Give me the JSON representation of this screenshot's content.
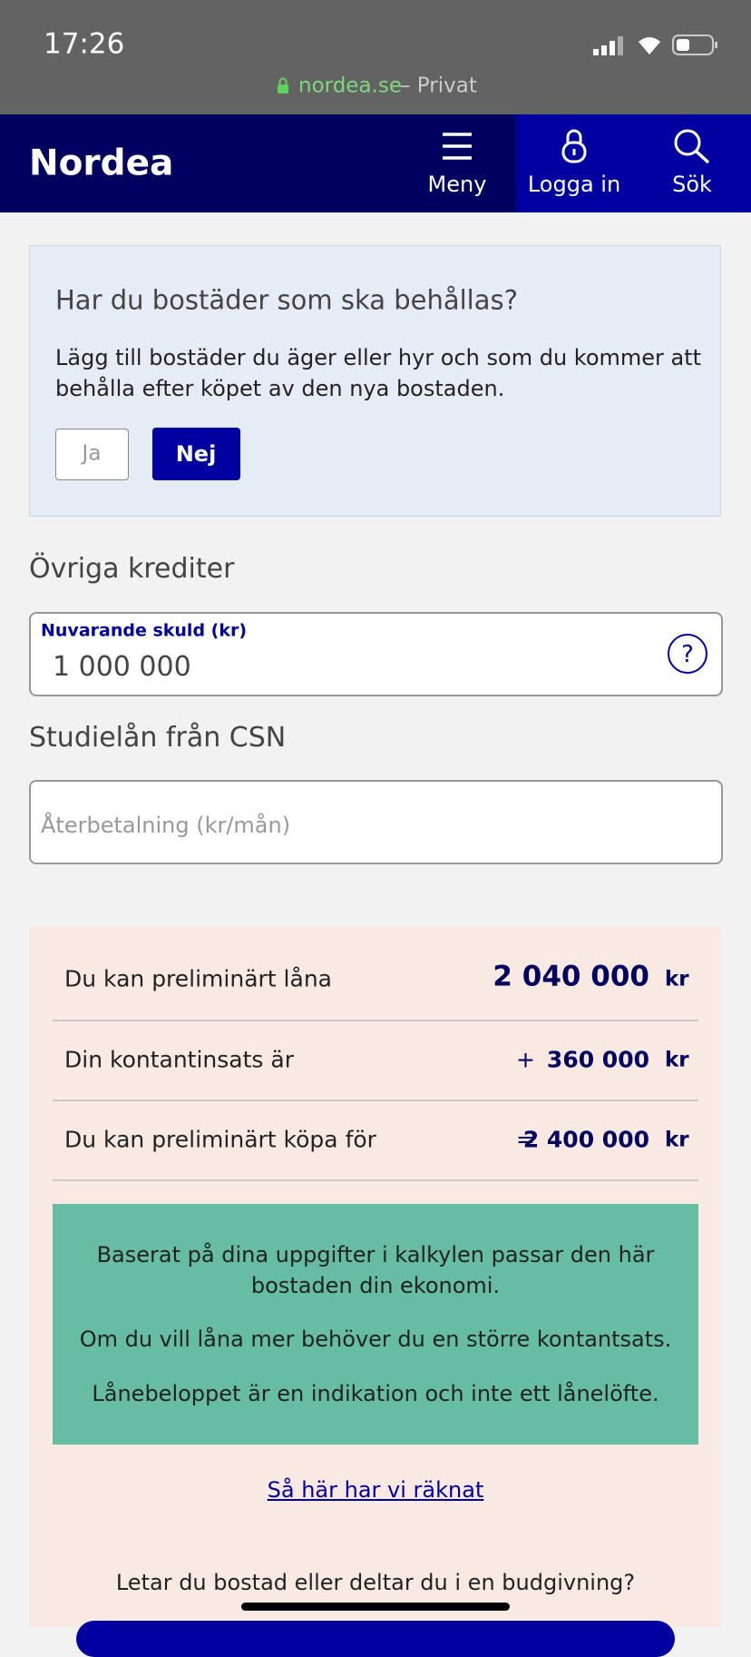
{
  "status_bar": {
    "time": "17:26",
    "url": "nordea.se",
    "url_suffix": "– Privat"
  },
  "nav": {
    "logo": "Nordea",
    "items": [
      "Meny",
      "Logga in",
      "Sök"
    ]
  },
  "question": {
    "title": "Har du bostäder som ska behållas?",
    "text_lines": [
      "Lägg till bostäder du äger eller hyr och som du kommer att",
      "behålla efter köpet av den nya bostaden."
    ],
    "options": [
      "Ja",
      "Nej"
    ]
  },
  "other_credits": {
    "heading": "Övriga krediter",
    "field_label": "Nuvarande skuld (kr)",
    "field_value": "1 000 000"
  },
  "student_loan": {
    "heading": "Studielån från CSN",
    "placeholder": "Återbetalning (kr/mån)"
  },
  "summary": {
    "rows": [
      {
        "label": "Du kan preliminärt låna",
        "amount": "2 040 000",
        "unit": "kr"
      },
      {
        "label": "Din kontantinsats är",
        "operator": "+",
        "amount": "360 000",
        "unit": "kr"
      },
      {
        "label": "Du kan preliminärt köpa för",
        "operator": "=",
        "amount": "2 400 000",
        "unit": "kr"
      }
    ],
    "info_lines": [
      "Baserat på dina uppgifter i kalkylen passar den här",
      "bostaden din ekonomi.",
      "Om du vill låna mer behöver du en större kontantsats.",
      "Lånebeloppet är en indikation och inte ett lånelöfte."
    ],
    "link": "Så här har vi räknat",
    "footer_text": "Letar du bostad eller deltar du i en budgivning?"
  }
}
